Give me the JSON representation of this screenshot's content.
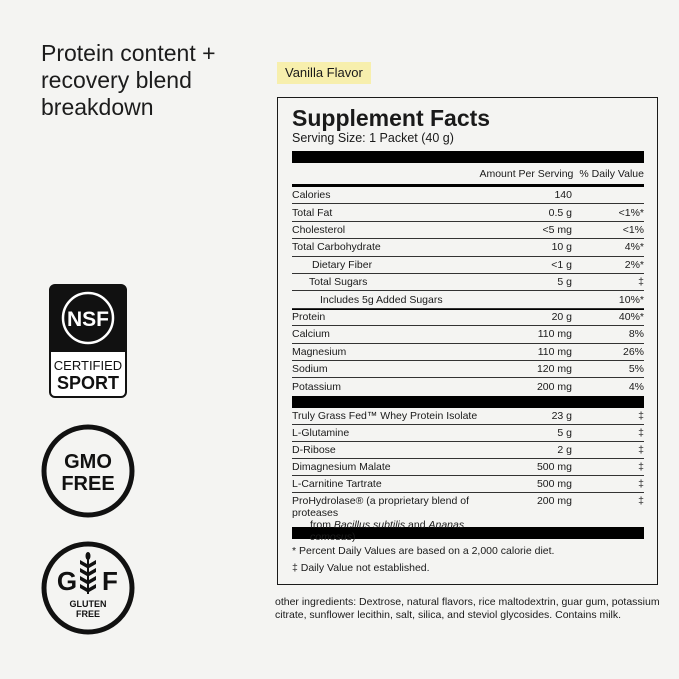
{
  "headline": "Protein content + recovery blend breakdown",
  "flavor": "Vanilla Flavor",
  "facts": {
    "title": "Supplement Facts",
    "serving": "Serving Size: 1 Packet (40 g)",
    "col_amount": "Amount Per Serving",
    "col_dv": "% Daily Value",
    "nutrients": [
      {
        "name": "Calories",
        "amount": "140",
        "dv": ""
      },
      {
        "name": "Total Fat",
        "amount": "0.5 g",
        "dv": "<1%*"
      },
      {
        "name": "Cholesterol",
        "amount": "<5 mg",
        "dv": "<1%"
      },
      {
        "name": "Total Carbohydrate",
        "amount": "10 g",
        "dv": "4%*"
      },
      {
        "name": "Dietary Fiber",
        "amount": "<1 g",
        "dv": "2%*"
      },
      {
        "name": "Total Sugars",
        "amount": "5 g",
        "dv": "‡"
      },
      {
        "name": "Includes 5g Added Sugars",
        "amount": "",
        "dv": "10%*"
      },
      {
        "name": "Protein",
        "amount": "20 g",
        "dv": "40%*"
      },
      {
        "name": "Calcium",
        "amount": "110 mg",
        "dv": "8%"
      },
      {
        "name": "Magnesium",
        "amount": "110 mg",
        "dv": "26%"
      },
      {
        "name": "Sodium",
        "amount": "120 mg",
        "dv": "5%"
      },
      {
        "name": "Potassium",
        "amount": "200 mg",
        "dv": "4%"
      }
    ],
    "ingredients": [
      {
        "name": "Truly Grass Fed™ Whey Protein Isolate",
        "amount": "23 g",
        "dv": "‡"
      },
      {
        "name": "L-Glutamine",
        "amount": "5 g",
        "dv": "‡"
      },
      {
        "name": "D-Ribose",
        "amount": "2 g",
        "dv": "‡"
      },
      {
        "name": "Dimagnesium Malate",
        "amount": "500 mg",
        "dv": "‡"
      },
      {
        "name": "L-Carnitine Tartrate",
        "amount": "500 mg",
        "dv": "‡"
      },
      {
        "name": "ProHydrolase® (a proprietary blend of proteases",
        "sub_prefix": "from ",
        "sub_italic1": "Bacillus subtilis",
        "sub_mid": " and ",
        "sub_italic2": "Ananas comosus",
        "sub_suffix": ")",
        "amount": "200 mg",
        "dv": "‡"
      }
    ],
    "footnote1": "* Percent Daily Values are based on a 2,000 calorie diet.",
    "footnote2": "‡ Daily Value not established."
  },
  "other_ingredients": "other ingredients: Dextrose, natural flavors, rice maltodextrin, guar gum, potassium citrate, sunflower lecithin, salt, silica, and steviol glycosides. Contains milk.",
  "badges": {
    "nsf": {
      "logo": "NSF",
      "line1": "CERTIFIED",
      "line2": "SPORT"
    },
    "gmo": {
      "line1": "GMO",
      "line2": "FREE"
    },
    "gluten": {
      "g": "G",
      "f": "F",
      "line1": "GLUTEN",
      "line2": "FREE"
    }
  }
}
